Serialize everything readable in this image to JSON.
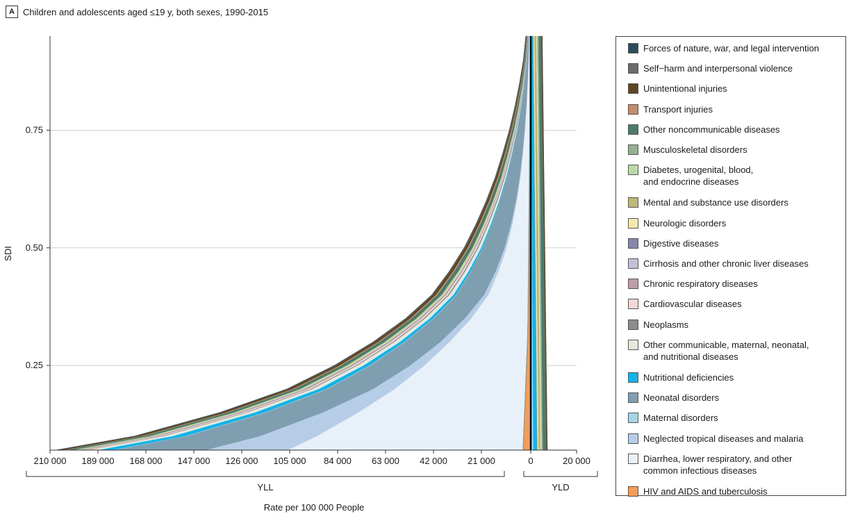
{
  "panel": {
    "letter": "A",
    "title": "Children and adolescents aged ≤19 y, both sexes, 1990-2015"
  },
  "chart_data": {
    "type": "area",
    "ylabel": "SDI",
    "xlabel": "Rate per 100 000 People",
    "group_labels": {
      "yll": "YLL",
      "yld": "YLD"
    },
    "ylim": [
      0.07,
      0.95
    ],
    "yticks": [
      {
        "value": 0.25,
        "label": "0.25"
      },
      {
        "value": 0.5,
        "label": "0.50"
      },
      {
        "value": 0.75,
        "label": "0.75"
      }
    ],
    "yll_xlim": [
      210000,
      0
    ],
    "yll_xticks": [
      {
        "value": 210000,
        "label": "210 000"
      },
      {
        "value": 189000,
        "label": "189 000"
      },
      {
        "value": 168000,
        "label": "168 000"
      },
      {
        "value": 147000,
        "label": "147 000"
      },
      {
        "value": 126000,
        "label": "126 000"
      },
      {
        "value": 105000,
        "label": "105 000"
      },
      {
        "value": 84000,
        "label": "84 000"
      },
      {
        "value": 63000,
        "label": "63 000"
      },
      {
        "value": 42000,
        "label": "42 000"
      },
      {
        "value": 21000,
        "label": "21 000"
      }
    ],
    "yld_xticks": [
      {
        "value": 0,
        "label": "0"
      },
      {
        "value": 20000,
        "label": "20 000"
      }
    ],
    "grid": true,
    "legend_position": "right",
    "sdi": [
      0.07,
      0.1,
      0.15,
      0.2,
      0.25,
      0.3,
      0.35,
      0.4,
      0.45,
      0.5,
      0.55,
      0.6,
      0.65,
      0.7,
      0.75,
      0.8,
      0.85,
      0.9,
      0.95
    ],
    "yll_series": [
      {
        "name": "Diarrhea, lower respiratory, and other\ncommon infectious diseases",
        "color": "#e8f1f9",
        "values": [
          106000,
          93000,
          75000,
          59000,
          46000,
          35000,
          25500,
          18000,
          13500,
          10000,
          7500,
          5500,
          4000,
          2900,
          2000,
          1300,
          800,
          400,
          200
        ]
      },
      {
        "name": "Neglected tropical diseases and malaria",
        "color": "#b6cde8",
        "values": [
          36000,
          25000,
          15500,
          9500,
          6200,
          4000,
          2800,
          1900,
          1300,
          900,
          600,
          400,
          250,
          150,
          100,
          60,
          40,
          20,
          10
        ]
      },
      {
        "name": "Neonatal disorders",
        "color": "#7f9fb1",
        "values": [
          40000,
          32000,
          25000,
          20000,
          17500,
          15500,
          13500,
          12000,
          10800,
          9500,
          8300,
          7000,
          5700,
          4500,
          3300,
          2300,
          1400,
          700,
          300
        ]
      },
      {
        "name": "Maternal disorders",
        "color": "#a3d7e4",
        "values": [
          800,
          700,
          600,
          500,
          400,
          300,
          250,
          200,
          150,
          100,
          80,
          60,
          40,
          30,
          20,
          10,
          5,
          3,
          1
        ]
      },
      {
        "name": "Nutritional deficiencies",
        "color": "#14b3e6",
        "values": [
          6500,
          5400,
          4200,
          3300,
          2600,
          2000,
          1600,
          1200,
          900,
          650,
          450,
          300,
          200,
          130,
          80,
          50,
          30,
          15,
          5
        ]
      },
      {
        "name": "Other communicable, maternal, neonatal,\nand nutritional diseases",
        "color": "#e9e7dd",
        "values": [
          4500,
          4000,
          3500,
          3000,
          2700,
          2400,
          2100,
          1800,
          1500,
          1250,
          1000,
          800,
          600,
          450,
          330,
          230,
          150,
          80,
          40
        ]
      },
      {
        "name": "Neoplasms",
        "color": "#8e8c8b",
        "values": [
          900,
          850,
          800,
          750,
          700,
          650,
          620,
          580,
          540,
          500,
          460,
          420,
          380,
          340,
          300,
          260,
          220,
          180,
          150
        ]
      },
      {
        "name": "Cardiovascular diseases",
        "color": "#f2d8d7",
        "values": [
          1500,
          1400,
          1300,
          1200,
          1100,
          1000,
          900,
          800,
          700,
          600,
          500,
          420,
          350,
          280,
          220,
          170,
          120,
          80,
          50
        ]
      },
      {
        "name": "Chronic respiratory diseases",
        "color": "#c09ca6",
        "values": [
          500,
          450,
          400,
          350,
          300,
          260,
          220,
          190,
          160,
          130,
          100,
          80,
          60,
          45,
          35,
          25,
          15,
          10,
          5
        ]
      },
      {
        "name": "Cirrhosis and other chronic liver diseases",
        "color": "#c4c1d6",
        "values": [
          300,
          280,
          250,
          220,
          190,
          160,
          140,
          120,
          100,
          80,
          60,
          45,
          35,
          25,
          15,
          10,
          6,
          3,
          1
        ]
      },
      {
        "name": "Digestive diseases",
        "color": "#8787ac",
        "values": [
          900,
          820,
          740,
          660,
          580,
          500,
          430,
          370,
          310,
          250,
          200,
          160,
          120,
          90,
          60,
          40,
          25,
          12,
          5
        ]
      },
      {
        "name": "Neurologic disorders",
        "color": "#f6e7ad",
        "values": [
          700,
          650,
          600,
          550,
          500,
          460,
          420,
          380,
          340,
          300,
          260,
          230,
          200,
          170,
          140,
          110,
          80,
          55,
          35
        ]
      },
      {
        "name": "Mental and substance use disorders",
        "color": "#bfb774",
        "values": [
          200,
          190,
          180,
          170,
          160,
          150,
          140,
          130,
          120,
          110,
          100,
          90,
          80,
          70,
          60,
          50,
          40,
          30,
          20
        ]
      },
      {
        "name": "Diabetes, urogenital, blood,\nand endocrine diseases",
        "color": "#bcdaa8",
        "values": [
          1400,
          1300,
          1200,
          1100,
          1000,
          900,
          800,
          700,
          620,
          540,
          460,
          390,
          320,
          260,
          200,
          150,
          100,
          60,
          30
        ]
      },
      {
        "name": "Musculoskeletal disorders",
        "color": "#96b092",
        "values": [
          300,
          280,
          260,
          240,
          220,
          200,
          180,
          160,
          140,
          120,
          100,
          80,
          60,
          45,
          30,
          20,
          12,
          6,
          3
        ]
      },
      {
        "name": "Other noncommunicable diseases",
        "color": "#4d7a6e",
        "values": [
          3000,
          2800,
          2600,
          2400,
          2250,
          2100,
          1950,
          1800,
          1650,
          1500,
          1350,
          1200,
          1050,
          900,
          750,
          600,
          450,
          320,
          200
        ]
      },
      {
        "name": "Transport injuries",
        "color": "#c48d6c",
        "values": [
          1000,
          950,
          900,
          860,
          820,
          780,
          740,
          700,
          660,
          620,
          580,
          540,
          500,
          450,
          400,
          340,
          280,
          210,
          150
        ]
      },
      {
        "name": "Unintentional injuries",
        "color": "#5e4524",
        "values": [
          2300,
          2150,
          2000,
          1850,
          1700,
          1550,
          1400,
          1280,
          1160,
          1040,
          920,
          800,
          680,
          560,
          450,
          350,
          260,
          180,
          120
        ]
      },
      {
        "name": "Self−harm and interpersonal violence",
        "color": "#6a6b6d",
        "values": [
          400,
          390,
          380,
          370,
          360,
          350,
          340,
          330,
          320,
          310,
          300,
          290,
          280,
          270,
          260,
          250,
          240,
          230,
          220
        ]
      },
      {
        "name": "Forces of nature, war, and legal intervention",
        "color": "#2a4d5c",
        "values": [
          300,
          280,
          260,
          240,
          220,
          200,
          180,
          160,
          140,
          120,
          100,
          90,
          80,
          70,
          60,
          50,
          40,
          30,
          20
        ]
      }
    ],
    "yld_series": [
      {
        "name": "Diarrhea, lower respiratory, and other\ncommon infectious diseases",
        "color": "#e8f1f9",
        "values": [
          400,
          380,
          360,
          340,
          320,
          300,
          280,
          260,
          240,
          220,
          200,
          180,
          160,
          140,
          120,
          100,
          80,
          60,
          40
        ]
      },
      {
        "name": "Neglected tropical diseases and malaria",
        "color": "#b6cde8",
        "values": [
          800,
          760,
          720,
          680,
          640,
          600,
          560,
          520,
          480,
          440,
          400,
          360,
          320,
          280,
          240,
          200,
          160,
          120,
          80
        ]
      },
      {
        "name": "Nutritional deficiencies",
        "color": "#14b3e6",
        "values": [
          1800,
          1760,
          1720,
          1680,
          1640,
          1600,
          1560,
          1520,
          1480,
          1440,
          1400,
          1360,
          1320,
          1280,
          1240,
          1200,
          1160,
          1120,
          1080
        ]
      },
      {
        "name": "Other communicable, maternal, neonatal,\nand nutritional diseases",
        "color": "#e9e7dd",
        "values": [
          500,
          495,
          490,
          485,
          480,
          475,
          470,
          465,
          460,
          455,
          450,
          445,
          440,
          435,
          430,
          425,
          420,
          415,
          410
        ]
      },
      {
        "name": "Mental and substance use disorders",
        "color": "#bfb774",
        "values": [
          900,
          900,
          900,
          900,
          900,
          900,
          900,
          900,
          900,
          900,
          900,
          900,
          900,
          900,
          900,
          900,
          900,
          900,
          900
        ]
      },
      {
        "name": "Neurologic disorders",
        "color": "#f6e7ad",
        "values": [
          400,
          400,
          400,
          400,
          400,
          400,
          400,
          400,
          400,
          400,
          400,
          400,
          400,
          400,
          400,
          400,
          400,
          400,
          400
        ]
      },
      {
        "name": "Musculoskeletal disorders",
        "color": "#96b092",
        "values": [
          600,
          600,
          600,
          600,
          600,
          600,
          600,
          600,
          600,
          600,
          600,
          600,
          600,
          600,
          600,
          600,
          600,
          600,
          600
        ]
      },
      {
        "name": "Other noncommunicable diseases",
        "color": "#4d7a6e",
        "values": [
          1600,
          1580,
          1560,
          1540,
          1520,
          1500,
          1480,
          1460,
          1440,
          1420,
          1400,
          1380,
          1360,
          1340,
          1320,
          1300,
          1280,
          1260,
          1240
        ]
      },
      {
        "name": "Unintentional injuries",
        "color": "#5e4524",
        "values": [
          300,
          300,
          300,
          300,
          300,
          300,
          300,
          300,
          300,
          300,
          300,
          300,
          300,
          300,
          300,
          300,
          300,
          300,
          300
        ]
      }
    ],
    "yld_negative_series": [
      {
        "name": "HIV and AIDS and tuberculosis",
        "color": "#f59d56",
        "values": [
          3200,
          2920,
          2500,
          2080,
          1660,
          1240,
          1000,
          900,
          800,
          700,
          600,
          500,
          400,
          320,
          250,
          200,
          150,
          120,
          100
        ]
      },
      {
        "name": "Neonatal disorders",
        "color": "#7f9fb1",
        "values": [
          300,
          300,
          300,
          300,
          300,
          300,
          300,
          300,
          300,
          300,
          300,
          300,
          300,
          300,
          300,
          300,
          300,
          300,
          300
        ]
      }
    ]
  },
  "legend": [
    {
      "label": "Forces of nature, war, and legal intervention",
      "color": "#2a4d5c"
    },
    {
      "label": "Self−harm and interpersonal violence",
      "color": "#6a6b6d"
    },
    {
      "label": "Unintentional injuries",
      "color": "#5e4524"
    },
    {
      "label": "Transport injuries",
      "color": "#c48d6c"
    },
    {
      "label": "Other noncommunicable diseases",
      "color": "#4d7a6e"
    },
    {
      "label": "Musculoskeletal disorders",
      "color": "#96b092"
    },
    {
      "label": "Diabetes, urogenital, blood,\nand endocrine diseases",
      "color": "#bcdaa8"
    },
    {
      "label": "Mental and substance use disorders",
      "color": "#bfb774"
    },
    {
      "label": "Neurologic disorders",
      "color": "#f6e7ad"
    },
    {
      "label": "Digestive diseases",
      "color": "#8787ac"
    },
    {
      "label": "Cirrhosis and other chronic liver diseases",
      "color": "#c4c1d6"
    },
    {
      "label": "Chronic respiratory diseases",
      "color": "#c09ca6"
    },
    {
      "label": "Cardiovascular diseases",
      "color": "#f2d8d7"
    },
    {
      "label": "Neoplasms",
      "color": "#8e8c8b"
    },
    {
      "label": "Other communicable, maternal, neonatal,\nand nutritional diseases",
      "color": "#e9e7dd"
    },
    {
      "label": "Nutritional deficiencies",
      "color": "#14b3e6"
    },
    {
      "label": "Neonatal disorders",
      "color": "#7f9fb1"
    },
    {
      "label": "Maternal disorders",
      "color": "#a3d7e4"
    },
    {
      "label": "Neglected tropical diseases and malaria",
      "color": "#b6cde8"
    },
    {
      "label": "Diarrhea, lower respiratory, and other\ncommon infectious diseases",
      "color": "#e8f1f9"
    },
    {
      "label": "HIV and AIDS and tuberculosis",
      "color": "#f59d56"
    }
  ]
}
